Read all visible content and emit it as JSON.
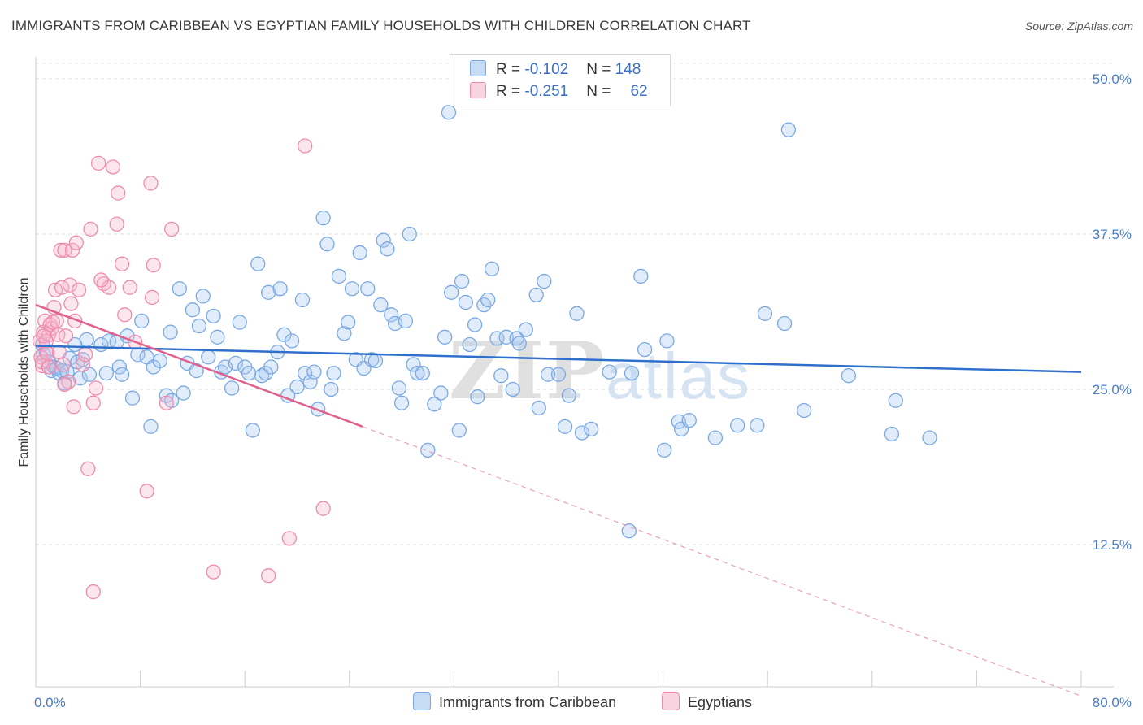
{
  "title": "IMMIGRANTS FROM CARIBBEAN VS EGYPTIAN FAMILY HOUSEHOLDS WITH CHILDREN CORRELATION CHART",
  "source": "Source: ZipAtlas.com",
  "watermark": {
    "part1": "ZIP",
    "part2": "atlas"
  },
  "legend": {
    "rows": [
      {
        "r_label": "R = ",
        "r_value": "-0.102",
        "n_label": "N = ",
        "n_value": "148",
        "color": "#a9c8f0"
      },
      {
        "r_label": "R = ",
        "r_value": "-0.251",
        "n_label": "N = ",
        "n_value": "62",
        "color": "#f5b8cc"
      }
    ]
  },
  "bottom_legend": [
    {
      "label": "Immigrants from Caribbean",
      "color": "#a9c8f0"
    },
    {
      "label": "Egyptians",
      "color": "#f5b8cc"
    }
  ],
  "chart_data": {
    "type": "scatter",
    "title": "IMMIGRANTS FROM CARIBBEAN VS EGYPTIAN FAMILY HOUSEHOLDS WITH CHILDREN CORRELATION CHART",
    "xlabel": "",
    "ylabel": "Family Households with Children",
    "xlim": [
      0,
      80
    ],
    "ylim": [
      0,
      51
    ],
    "x_tick_labels": [
      "0.0%",
      "80.0%"
    ],
    "y_ticks": [
      12.5,
      25.0,
      37.5,
      50.0
    ],
    "y_tick_labels": [
      "12.5%",
      "25.0%",
      "37.5%",
      "50.0%"
    ],
    "grid": true,
    "legend_position": "top-center",
    "series": [
      {
        "name": "Immigrants from Caribbean",
        "color": "#7aa9e3",
        "trend": {
          "x": [
            0,
            80
          ],
          "y": [
            28.5,
            26.4
          ],
          "color": "#2f6fcc"
        },
        "points": [
          [
            0.5,
            28.6
          ],
          [
            0.6,
            27.8
          ],
          [
            0.8,
            28.0
          ],
          [
            1.0,
            27.2
          ],
          [
            1.2,
            26.5
          ],
          [
            1.4,
            26.8
          ],
          [
            1.6,
            26.7
          ],
          [
            1.8,
            26.3
          ],
          [
            2.0,
            26.5
          ],
          [
            2.2,
            25.5
          ],
          [
            2.4,
            26.4
          ],
          [
            2.6,
            27.5
          ],
          [
            3.0,
            28.6
          ],
          [
            3.2,
            27.2
          ],
          [
            3.4,
            25.9
          ],
          [
            3.6,
            27.4
          ],
          [
            3.9,
            29.0
          ],
          [
            4.1,
            26.2
          ],
          [
            5.0,
            28.6
          ],
          [
            5.6,
            28.9
          ],
          [
            5.4,
            26.3
          ],
          [
            6.2,
            28.8
          ],
          [
            6.4,
            26.8
          ],
          [
            6.6,
            26.2
          ],
          [
            7.0,
            29.3
          ],
          [
            7.4,
            24.3
          ],
          [
            7.8,
            27.8
          ],
          [
            8.1,
            30.5
          ],
          [
            8.5,
            27.6
          ],
          [
            8.8,
            22.0
          ],
          [
            9.0,
            26.8
          ],
          [
            9.5,
            27.3
          ],
          [
            10.0,
            24.5
          ],
          [
            10.3,
            29.6
          ],
          [
            10.4,
            24.1
          ],
          [
            11.0,
            33.1
          ],
          [
            11.3,
            24.7
          ],
          [
            11.6,
            27.1
          ],
          [
            12.0,
            31.4
          ],
          [
            12.3,
            26.5
          ],
          [
            12.5,
            30.1
          ],
          [
            12.8,
            32.5
          ],
          [
            13.2,
            27.6
          ],
          [
            13.6,
            30.9
          ],
          [
            13.9,
            29.2
          ],
          [
            14.2,
            26.4
          ],
          [
            14.5,
            26.8
          ],
          [
            15.0,
            25.1
          ],
          [
            15.3,
            27.1
          ],
          [
            15.6,
            30.4
          ],
          [
            16.0,
            26.8
          ],
          [
            16.3,
            26.3
          ],
          [
            16.6,
            21.7
          ],
          [
            17.0,
            35.1
          ],
          [
            17.3,
            26.1
          ],
          [
            17.6,
            26.3
          ],
          [
            17.8,
            32.8
          ],
          [
            18.0,
            26.8
          ],
          [
            18.5,
            28.0
          ],
          [
            18.7,
            33.1
          ],
          [
            19.0,
            29.4
          ],
          [
            19.3,
            24.5
          ],
          [
            19.6,
            28.9
          ],
          [
            20.0,
            25.2
          ],
          [
            20.4,
            32.2
          ],
          [
            20.6,
            26.3
          ],
          [
            21.0,
            25.6
          ],
          [
            21.3,
            26.4
          ],
          [
            21.6,
            23.4
          ],
          [
            22.0,
            38.8
          ],
          [
            22.3,
            36.7
          ],
          [
            22.6,
            25.0
          ],
          [
            22.8,
            26.3
          ],
          [
            23.2,
            34.1
          ],
          [
            23.6,
            29.5
          ],
          [
            23.9,
            30.4
          ],
          [
            24.2,
            33.1
          ],
          [
            24.5,
            27.4
          ],
          [
            24.8,
            36.0
          ],
          [
            25.1,
            26.7
          ],
          [
            25.4,
            33.1
          ],
          [
            25.7,
            27.4
          ],
          [
            26.0,
            27.3
          ],
          [
            26.4,
            31.8
          ],
          [
            26.6,
            37.0
          ],
          [
            26.9,
            36.3
          ],
          [
            27.2,
            31.0
          ],
          [
            27.5,
            30.3
          ],
          [
            27.8,
            25.1
          ],
          [
            28.0,
            23.9
          ],
          [
            28.3,
            30.5
          ],
          [
            28.6,
            37.5
          ],
          [
            28.9,
            27.0
          ],
          [
            29.2,
            26.3
          ],
          [
            29.6,
            26.3
          ],
          [
            30.0,
            20.1
          ],
          [
            30.5,
            23.8
          ],
          [
            31.0,
            24.7
          ],
          [
            31.3,
            29.2
          ],
          [
            31.6,
            47.3
          ],
          [
            31.8,
            32.8
          ],
          [
            32.4,
            21.7
          ],
          [
            32.6,
            33.7
          ],
          [
            32.9,
            32.0
          ],
          [
            33.2,
            28.6
          ],
          [
            33.6,
            30.2
          ],
          [
            33.8,
            24.4
          ],
          [
            34.3,
            31.8
          ],
          [
            34.6,
            32.2
          ],
          [
            34.9,
            34.7
          ],
          [
            35.3,
            29.1
          ],
          [
            35.6,
            26.1
          ],
          [
            36.0,
            29.2
          ],
          [
            36.5,
            25.0
          ],
          [
            36.8,
            29.1
          ],
          [
            37.0,
            28.7
          ],
          [
            37.5,
            29.8
          ],
          [
            38.3,
            32.6
          ],
          [
            38.5,
            23.5
          ],
          [
            38.9,
            33.7
          ],
          [
            39.2,
            26.2
          ],
          [
            40.0,
            26.2
          ],
          [
            40.5,
            22.0
          ],
          [
            40.8,
            24.5
          ],
          [
            41.4,
            31.1
          ],
          [
            41.8,
            21.5
          ],
          [
            42.5,
            21.8
          ],
          [
            43.9,
            26.4
          ],
          [
            45.6,
            26.3
          ],
          [
            46.3,
            34.1
          ],
          [
            46.6,
            28.2
          ],
          [
            48.1,
            20.1
          ],
          [
            48.3,
            28.9
          ],
          [
            49.2,
            22.4
          ],
          [
            49.4,
            21.8
          ],
          [
            50.0,
            22.5
          ],
          [
            52.0,
            21.1
          ],
          [
            53.7,
            22.1
          ],
          [
            55.2,
            22.1
          ],
          [
            55.8,
            31.1
          ],
          [
            57.3,
            30.3
          ],
          [
            57.6,
            45.9
          ],
          [
            58.8,
            23.3
          ],
          [
            62.2,
            26.1
          ],
          [
            65.5,
            21.4
          ],
          [
            65.8,
            24.1
          ],
          [
            68.4,
            21.1
          ],
          [
            45.4,
            13.6
          ]
        ]
      },
      {
        "name": "Egyptians",
        "color": "#f08aad",
        "trend": {
          "x": [
            0,
            25
          ],
          "y": [
            31.8,
            22.0
          ],
          "color": "#e0608e"
        },
        "trend_dashed": {
          "x": [
            25,
            80
          ],
          "y": [
            22.0,
            0.3
          ]
        },
        "points": [
          [
            0.3,
            28.9
          ],
          [
            0.4,
            27.6
          ],
          [
            0.5,
            26.9
          ],
          [
            0.5,
            27.2
          ],
          [
            0.6,
            29.6
          ],
          [
            0.7,
            30.5
          ],
          [
            0.8,
            28.9
          ],
          [
            0.9,
            27.9
          ],
          [
            1.0,
            29.4
          ],
          [
            1.1,
            30.2
          ],
          [
            1.2,
            29.9
          ],
          [
            1.3,
            30.4
          ],
          [
            1.4,
            31.6
          ],
          [
            1.5,
            33.0
          ],
          [
            1.6,
            30.5
          ],
          [
            1.7,
            29.4
          ],
          [
            1.8,
            28.0
          ],
          [
            1.9,
            36.2
          ],
          [
            2.0,
            33.2
          ],
          [
            2.1,
            27.0
          ],
          [
            2.2,
            36.2
          ],
          [
            2.3,
            29.3
          ],
          [
            2.5,
            25.6
          ],
          [
            2.6,
            33.4
          ],
          [
            2.7,
            31.9
          ],
          [
            2.8,
            36.2
          ],
          [
            2.9,
            23.6
          ],
          [
            3.0,
            30.5
          ],
          [
            3.1,
            36.8
          ],
          [
            3.3,
            33.0
          ],
          [
            3.6,
            27.0
          ],
          [
            3.8,
            27.8
          ],
          [
            4.0,
            18.6
          ],
          [
            4.2,
            37.9
          ],
          [
            4.4,
            23.9
          ],
          [
            4.6,
            25.1
          ],
          [
            4.8,
            43.2
          ],
          [
            5.2,
            33.5
          ],
          [
            5.6,
            33.2
          ],
          [
            5.9,
            42.9
          ],
          [
            6.2,
            38.3
          ],
          [
            6.3,
            40.8
          ],
          [
            6.6,
            35.1
          ],
          [
            6.8,
            31.0
          ],
          [
            7.2,
            33.2
          ],
          [
            7.6,
            28.8
          ],
          [
            8.5,
            16.8
          ],
          [
            8.8,
            41.6
          ],
          [
            8.9,
            32.4
          ],
          [
            9.0,
            35.0
          ],
          [
            10.0,
            23.9
          ],
          [
            10.4,
            37.9
          ],
          [
            13.6,
            10.3
          ],
          [
            17.8,
            10.0
          ],
          [
            19.4,
            13.0
          ],
          [
            20.6,
            44.6
          ],
          [
            22.0,
            15.4
          ],
          [
            4.4,
            8.7
          ],
          [
            2.2,
            25.4
          ],
          [
            1.0,
            26.8
          ],
          [
            0.6,
            29.3
          ],
          [
            5.0,
            33.8
          ]
        ]
      }
    ]
  }
}
